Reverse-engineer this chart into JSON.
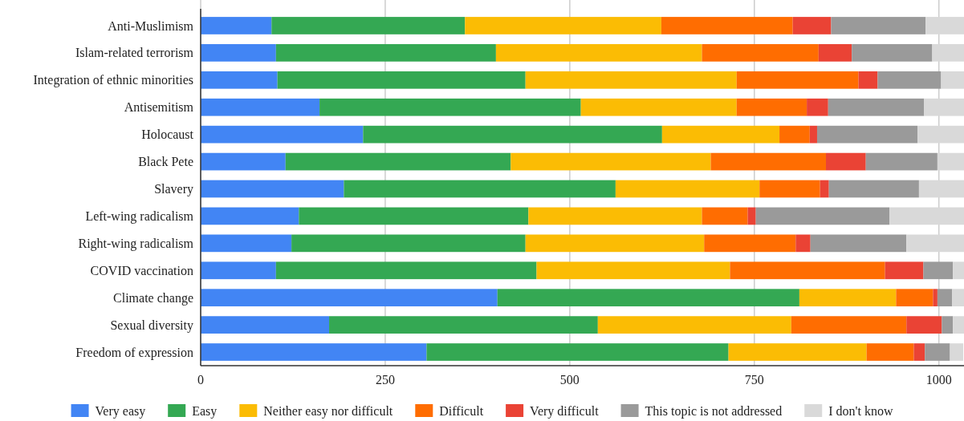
{
  "chart_data": {
    "type": "bar",
    "orientation": "horizontal",
    "stacked": true,
    "categories": [
      "Anti-Muslimism",
      "Islam-related terrorism",
      "Integration of ethnic minorities",
      "Antisemitism",
      "Holocaust",
      "Black Pete",
      "Slavery",
      "Left-wing radicalism",
      "Right-wing radicalism",
      "COVID vaccination",
      "Climate change",
      "Sexual diversity",
      "Freedom of expression"
    ],
    "series": [
      {
        "name": "Very easy",
        "color": "#4285f4",
        "values": [
          96,
          102,
          104,
          161,
          220,
          115,
          194,
          133,
          123,
          102,
          402,
          174,
          306
        ]
      },
      {
        "name": "Easy",
        "color": "#34a853",
        "values": [
          262,
          298,
          336,
          354,
          405,
          305,
          368,
          311,
          317,
          353,
          409,
          364,
          409
        ]
      },
      {
        "name": "Neither easy nor difficult",
        "color": "#fbbc04",
        "values": [
          266,
          279,
          286,
          211,
          159,
          271,
          195,
          235,
          242,
          262,
          131,
          262,
          187
        ]
      },
      {
        "name": "Difficult",
        "color": "#ff6d01",
        "values": [
          178,
          158,
          165,
          95,
          41,
          156,
          82,
          62,
          124,
          210,
          50,
          156,
          64
        ]
      },
      {
        "name": "Very difficult",
        "color": "#ea4335",
        "values": [
          52,
          45,
          26,
          29,
          10,
          54,
          12,
          11,
          20,
          52,
          6,
          48,
          15
        ]
      },
      {
        "name": "This topic is not addressed",
        "color": "#9a9a9a",
        "values": [
          128,
          109,
          86,
          130,
          136,
          97,
          122,
          181,
          130,
          40,
          20,
          15,
          34
        ]
      },
      {
        "name": "I don't know",
        "color": "#d9d9d9",
        "values": [
          52,
          43,
          31,
          55,
          63,
          36,
          61,
          101,
          78,
          15,
          16,
          15,
          18
        ]
      }
    ],
    "xlim": [
      0,
      1034
    ],
    "xticks": [
      0,
      250,
      500,
      750,
      1000
    ],
    "grid": "x",
    "legend": "bottom"
  }
}
